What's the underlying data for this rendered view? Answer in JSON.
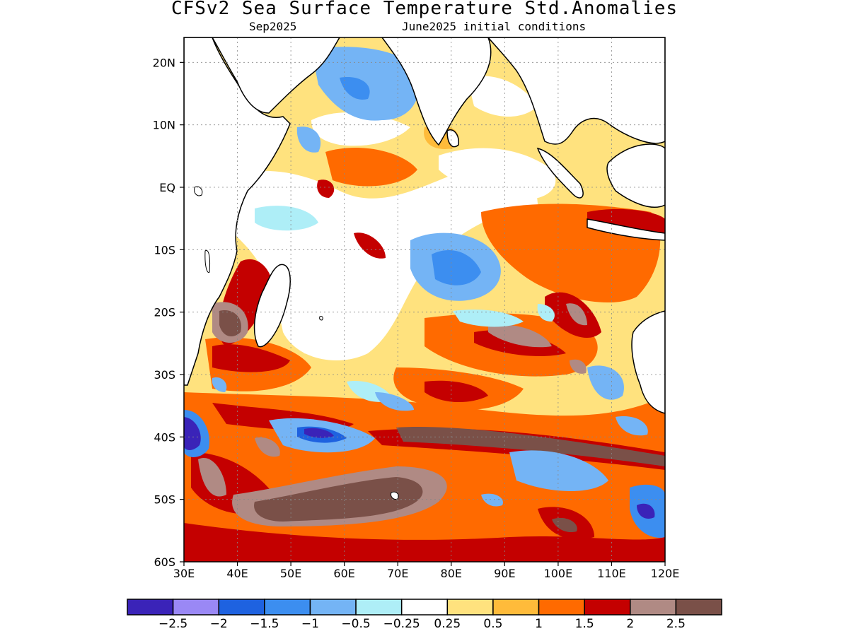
{
  "title": "CFSv2 Sea Surface Temperature Std.Anomalies",
  "subtitle_left": "Sep2025",
  "subtitle_right": "June2025 initial conditions",
  "map": {
    "lon_range": [
      30,
      120
    ],
    "lat_range": [
      -60,
      24
    ],
    "x_ticks": [
      {
        "value": 30,
        "label": "30E"
      },
      {
        "value": 40,
        "label": "40E"
      },
      {
        "value": 50,
        "label": "50E"
      },
      {
        "value": 60,
        "label": "60E"
      },
      {
        "value": 70,
        "label": "70E"
      },
      {
        "value": 80,
        "label": "80E"
      },
      {
        "value": 90,
        "label": "90E"
      },
      {
        "value": 100,
        "label": "100E"
      },
      {
        "value": 110,
        "label": "110E"
      },
      {
        "value": 120,
        "label": "120E"
      }
    ],
    "y_ticks": [
      {
        "value": 20,
        "label": "20N"
      },
      {
        "value": 10,
        "label": "10N"
      },
      {
        "value": 0,
        "label": "EQ"
      },
      {
        "value": -10,
        "label": "10S"
      },
      {
        "value": -20,
        "label": "20S"
      },
      {
        "value": -30,
        "label": "30S"
      },
      {
        "value": -40,
        "label": "40S"
      },
      {
        "value": -50,
        "label": "50S"
      },
      {
        "value": -60,
        "label": "60S"
      }
    ],
    "grid": "dotted"
  },
  "colorbar": {
    "colors": [
      "#3a23b8",
      "#9a88f5",
      "#1e62e0",
      "#3c8ef0",
      "#74b4f5",
      "#aeeef7",
      "#ffffff",
      "#ffe27e",
      "#ffbb3a",
      "#ff6a00",
      "#c40000",
      "#b08a84",
      "#7a5048"
    ],
    "labels": [
      "−2.5",
      "−2",
      "−1.5",
      "−1",
      "−0.5",
      "−0.25",
      "0.25",
      "0.5",
      "1",
      "1.5",
      "2",
      "2.5"
    ]
  },
  "colors": {
    "land": "#ffffff",
    "coastline": "#000000"
  }
}
